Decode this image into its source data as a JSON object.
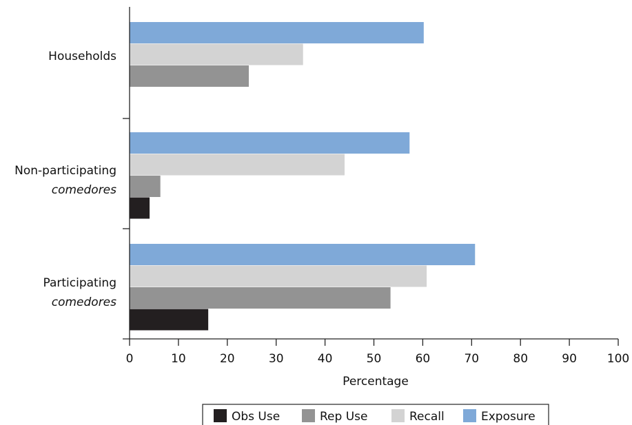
{
  "chart_data": {
    "type": "bar",
    "orientation": "horizontal",
    "categories": [
      {
        "line1": "Households",
        "line2": ""
      },
      {
        "line1": "Non-participating",
        "line2": "comedores"
      },
      {
        "line1": "Participating",
        "line2": "comedores"
      }
    ],
    "series": [
      {
        "name": "Exposure",
        "color": "#7fa9d8",
        "values": [
          60.2,
          57.3,
          70.7
        ]
      },
      {
        "name": "Recall",
        "color": "#d3d3d3",
        "values": [
          35.5,
          44.0,
          60.8
        ]
      },
      {
        "name": "Rep Use",
        "color": "#939393",
        "values": [
          24.4,
          6.3,
          53.4
        ]
      },
      {
        "name": "Obs Use",
        "color": "#231f20",
        "values": [
          0,
          4.1,
          16.1
        ]
      }
    ],
    "legend_order": [
      "Obs Use",
      "Rep Use",
      "Recall",
      "Exposure"
    ],
    "xlabel": "Percentage",
    "ylabel": "",
    "title": "",
    "xlim": [
      0,
      100
    ],
    "xticks": [
      "0",
      "10",
      "20",
      "30",
      "40",
      "50",
      "60",
      "70",
      "80",
      "90",
      "100"
    ],
    "grid": false,
    "legend_position": "bottom"
  }
}
